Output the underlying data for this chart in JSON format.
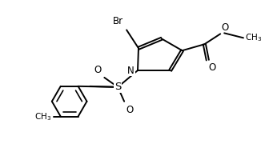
{
  "bg_color": "#ffffff",
  "line_color": "#000000",
  "line_width": 1.4,
  "font_size": 8.5,
  "figsize": [
    3.46,
    1.8
  ],
  "dpi": 100,
  "xlim": [
    0,
    3.46
  ],
  "ylim": [
    0,
    1.8
  ]
}
